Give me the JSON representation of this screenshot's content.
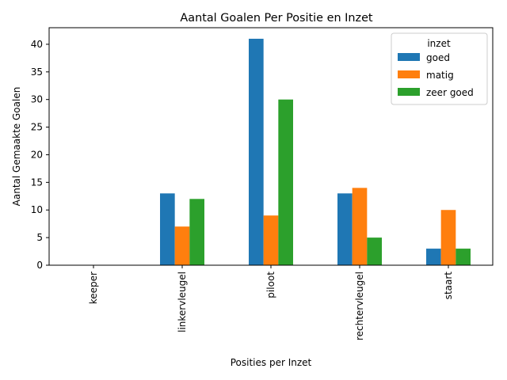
{
  "chart_data": {
    "type": "bar",
    "title": "Aantal Goalen Per Positie en Inzet",
    "xlabel": "Posities per Inzet",
    "ylabel": "Aantal Gemaakte Goalen",
    "categories": [
      "keeper",
      "linkervleugel",
      "piloot",
      "rechtervleugel",
      "staart"
    ],
    "series": [
      {
        "name": "goed",
        "values": [
          0,
          13,
          41,
          13,
          3
        ],
        "color": "#1f77b4"
      },
      {
        "name": "matig",
        "values": [
          0,
          7,
          9,
          14,
          10
        ],
        "color": "#ff7f0e"
      },
      {
        "name": "zeer goed",
        "values": [
          0,
          12,
          30,
          5,
          3
        ],
        "color": "#2ca02c"
      }
    ],
    "ylim": [
      0,
      43
    ],
    "yticks": [
      0,
      5,
      10,
      15,
      20,
      25,
      30,
      35,
      40
    ],
    "legend": {
      "title": "inzet",
      "placement": "top-right"
    },
    "grid": false
  }
}
